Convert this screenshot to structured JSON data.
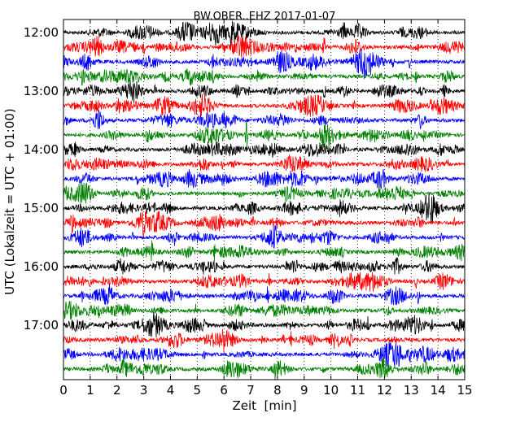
{
  "chart_data": {
    "type": "line",
    "title": "BW.OBER..EHZ 2017-01-07",
    "xlabel": "Zeit  [min]",
    "ylabel": "UTC (Lokalzeit = UTC + 01:00)",
    "xlim": [
      0,
      15
    ],
    "x_ticks": [
      0,
      1,
      2,
      3,
      4,
      5,
      6,
      7,
      8,
      9,
      10,
      11,
      12,
      13,
      14,
      15
    ],
    "y_tick_labels": [
      "12:00",
      "13:00",
      "14:00",
      "15:00",
      "16:00",
      "17:00"
    ],
    "grid": "vertical dotted lines at each minute",
    "trace_colors": [
      "#000000",
      "#ff0000",
      "#0000ff",
      "#008000"
    ],
    "traces": [
      {
        "start": "12:00",
        "color": "#000000"
      },
      {
        "start": "12:15",
        "color": "#ff0000"
      },
      {
        "start": "12:30",
        "color": "#0000ff"
      },
      {
        "start": "12:45",
        "color": "#008000"
      },
      {
        "start": "13:00",
        "color": "#000000"
      },
      {
        "start": "13:15",
        "color": "#ff0000"
      },
      {
        "start": "13:30",
        "color": "#0000ff"
      },
      {
        "start": "13:45",
        "color": "#008000"
      },
      {
        "start": "14:00",
        "color": "#000000"
      },
      {
        "start": "14:15",
        "color": "#ff0000"
      },
      {
        "start": "14:30",
        "color": "#0000ff"
      },
      {
        "start": "14:45",
        "color": "#008000"
      },
      {
        "start": "15:00",
        "color": "#000000"
      },
      {
        "start": "15:15",
        "color": "#ff0000"
      },
      {
        "start": "15:30",
        "color": "#0000ff"
      },
      {
        "start": "15:45",
        "color": "#008000"
      },
      {
        "start": "16:00",
        "color": "#000000"
      },
      {
        "start": "16:15",
        "color": "#ff0000"
      },
      {
        "start": "16:30",
        "color": "#0000ff"
      },
      {
        "start": "16:45",
        "color": "#008000"
      },
      {
        "start": "17:00",
        "color": "#000000"
      },
      {
        "start": "17:15",
        "color": "#ff0000"
      },
      {
        "start": "17:30",
        "color": "#0000ff"
      },
      {
        "start": "17:45",
        "color": "#008000"
      }
    ]
  }
}
